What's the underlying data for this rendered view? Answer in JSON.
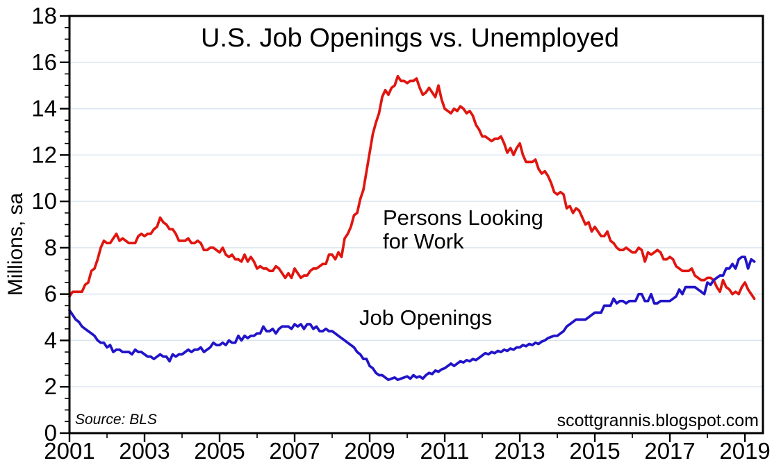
{
  "labels": {
    "title": "U.S. Job Openings vs. Unemployed",
    "ylabel": "Millions, sa",
    "unemployed_annotation_line1": "Persons Looking",
    "unemployed_annotation_line2": "for Work",
    "openings_annotation": "Job Openings",
    "source_note": "Source: BLS",
    "watermark": "scottgrannis.blogspot.com"
  },
  "colors": {
    "unemployed": "#e1150f",
    "openings": "#2114c8",
    "grid": "#d5e3ef",
    "axis": "#000000",
    "background": "#ffffff"
  },
  "chart_data": {
    "type": "line",
    "title": "U.S. Job Openings vs. Unemployed",
    "xlabel": "",
    "ylabel": "Millions, sa",
    "xlim": [
      2001,
      2019.48
    ],
    "ylim": [
      0,
      18
    ],
    "x_major_ticks": [
      2001,
      2003,
      2005,
      2007,
      2009,
      2011,
      2013,
      2015,
      2017,
      2019
    ],
    "x_minor_tick_years": [
      2002,
      2004,
      2006,
      2008,
      2010,
      2012,
      2014,
      2016,
      2018
    ],
    "y_major_ticks": [
      0,
      2,
      4,
      6,
      8,
      10,
      12,
      14,
      16,
      18
    ],
    "y_minor_tick_step": 0.5,
    "grid": "horizontal light-blue lines at y = 2,4,6,8,10,12,14,16",
    "legend_position": "inline text annotations on plot",
    "x_start_year": 2001,
    "x_step_months": 1,
    "source": "Source: BLS",
    "watermark": "scottgrannis.blogspot.com",
    "annotations": [
      {
        "text": "Persons Looking for Work",
        "series": "unemployed",
        "color": "#e1150f",
        "x": 2009.35,
        "y": 9.2
      },
      {
        "text": "Job Openings",
        "series": "openings",
        "color": "#2114c8",
        "x": 2008.7,
        "y": 4.8
      }
    ],
    "series": [
      {
        "name": "Persons Looking for Work",
        "color": "#e1150f",
        "values": [
          5.9,
          6.1,
          6.1,
          6.1,
          6.1,
          6.4,
          6.5,
          7.0,
          7.1,
          7.5,
          8.0,
          8.3,
          8.2,
          8.2,
          8.4,
          8.6,
          8.3,
          8.4,
          8.3,
          8.2,
          8.2,
          8.2,
          8.5,
          8.6,
          8.5,
          8.6,
          8.6,
          8.8,
          8.9,
          9.3,
          9.1,
          9.0,
          8.8,
          8.8,
          8.6,
          8.3,
          8.3,
          8.3,
          8.4,
          8.2,
          8.2,
          8.3,
          8.2,
          7.9,
          7.9,
          8.0,
          8.0,
          7.9,
          7.8,
          8.0,
          7.7,
          7.6,
          7.7,
          7.5,
          7.5,
          7.4,
          7.7,
          7.4,
          7.6,
          7.4,
          7.1,
          7.2,
          7.1,
          7.1,
          7.0,
          7.0,
          7.2,
          7.1,
          6.9,
          6.7,
          6.9,
          6.7,
          7.1,
          6.9,
          6.7,
          6.8,
          6.8,
          7.0,
          7.1,
          7.1,
          7.2,
          7.3,
          7.3,
          7.7,
          7.7,
          7.5,
          7.8,
          7.6,
          8.4,
          8.6,
          8.9,
          9.4,
          9.5,
          10.1,
          10.5,
          11.3,
          12.1,
          12.9,
          13.4,
          13.8,
          14.5,
          14.8,
          14.6,
          14.9,
          15.0,
          15.4,
          15.2,
          15.2,
          15.1,
          15.2,
          15.2,
          15.3,
          14.9,
          14.6,
          14.7,
          14.9,
          14.7,
          14.5,
          15.0,
          14.4,
          14.0,
          13.9,
          13.8,
          14.0,
          13.9,
          14.1,
          14.0,
          13.8,
          13.9,
          13.7,
          13.3,
          13.1,
          12.8,
          12.8,
          12.7,
          12.6,
          12.7,
          12.7,
          12.8,
          12.5,
          12.1,
          12.3,
          12.0,
          12.3,
          12.5,
          12.0,
          11.7,
          11.7,
          11.7,
          11.8,
          11.4,
          11.2,
          11.3,
          11.1,
          10.8,
          10.4,
          10.3,
          10.4,
          10.3,
          9.7,
          9.8,
          9.5,
          9.7,
          9.6,
          9.3,
          9.0,
          9.1,
          8.7,
          8.9,
          8.7,
          8.5,
          8.5,
          8.7,
          8.3,
          8.2,
          8.0,
          7.9,
          7.9,
          8.0,
          7.9,
          7.8,
          7.8,
          8.0,
          7.9,
          7.4,
          7.8,
          7.7,
          7.8,
          7.9,
          7.8,
          7.5,
          7.5,
          7.6,
          7.5,
          7.2,
          7.1,
          7.0,
          7.0,
          7.0,
          7.1,
          6.8,
          6.7,
          6.6,
          6.6,
          6.7,
          6.7,
          6.6,
          6.3,
          6.1,
          6.6,
          6.3,
          6.2,
          6.0,
          6.1,
          6.0,
          6.3,
          6.5,
          6.2,
          6.0,
          5.8
        ]
      },
      {
        "name": "Job Openings",
        "color": "#2114c8",
        "values": [
          5.3,
          5.1,
          4.9,
          4.8,
          4.6,
          4.5,
          4.4,
          4.3,
          4.2,
          4.0,
          3.9,
          3.9,
          3.7,
          3.8,
          3.5,
          3.6,
          3.6,
          3.5,
          3.5,
          3.5,
          3.4,
          3.6,
          3.5,
          3.5,
          3.4,
          3.3,
          3.3,
          3.2,
          3.3,
          3.4,
          3.3,
          3.3,
          3.1,
          3.4,
          3.3,
          3.4,
          3.4,
          3.5,
          3.6,
          3.5,
          3.6,
          3.6,
          3.7,
          3.5,
          3.6,
          3.7,
          3.9,
          3.8,
          3.8,
          3.9,
          3.8,
          4.0,
          3.9,
          3.9,
          4.2,
          4.0,
          4.2,
          4.1,
          4.2,
          4.2,
          4.3,
          4.3,
          4.6,
          4.4,
          4.4,
          4.5,
          4.3,
          4.5,
          4.6,
          4.6,
          4.6,
          4.5,
          4.7,
          4.6,
          4.7,
          4.5,
          4.7,
          4.7,
          4.5,
          4.6,
          4.4,
          4.4,
          4.5,
          4.4,
          4.4,
          4.3,
          4.2,
          4.1,
          4.0,
          3.9,
          3.8,
          3.7,
          3.5,
          3.4,
          3.2,
          3.2,
          2.9,
          2.8,
          2.6,
          2.5,
          2.5,
          2.4,
          2.3,
          2.35,
          2.4,
          2.3,
          2.35,
          2.4,
          2.45,
          2.35,
          2.5,
          2.4,
          2.45,
          2.35,
          2.5,
          2.6,
          2.55,
          2.7,
          2.65,
          2.75,
          2.8,
          2.9,
          3.0,
          2.9,
          3.0,
          3.1,
          3.05,
          3.15,
          3.1,
          3.2,
          3.15,
          3.25,
          3.35,
          3.45,
          3.4,
          3.5,
          3.45,
          3.55,
          3.5,
          3.6,
          3.55,
          3.65,
          3.6,
          3.7,
          3.7,
          3.8,
          3.75,
          3.85,
          3.8,
          3.9,
          3.85,
          3.95,
          4.0,
          4.1,
          4.15,
          4.2,
          4.2,
          4.3,
          4.4,
          4.6,
          4.7,
          4.8,
          4.9,
          4.9,
          4.9,
          4.9,
          5.0,
          5.1,
          5.2,
          5.2,
          5.2,
          5.5,
          5.5,
          5.5,
          5.8,
          5.6,
          5.7,
          5.7,
          5.6,
          5.7,
          5.7,
          5.7,
          6.0,
          6.0,
          5.7,
          5.7,
          6.0,
          5.6,
          5.6,
          5.7,
          5.7,
          5.7,
          5.7,
          5.8,
          5.9,
          6.2,
          6.0,
          6.3,
          6.3,
          6.3,
          6.3,
          6.2,
          6.1,
          6.0,
          6.5,
          6.4,
          6.6,
          6.7,
          6.8,
          6.8,
          7.1,
          7.1,
          7.3,
          7.1,
          7.5,
          7.6,
          7.6,
          7.1,
          7.5,
          7.4
        ]
      }
    ]
  }
}
